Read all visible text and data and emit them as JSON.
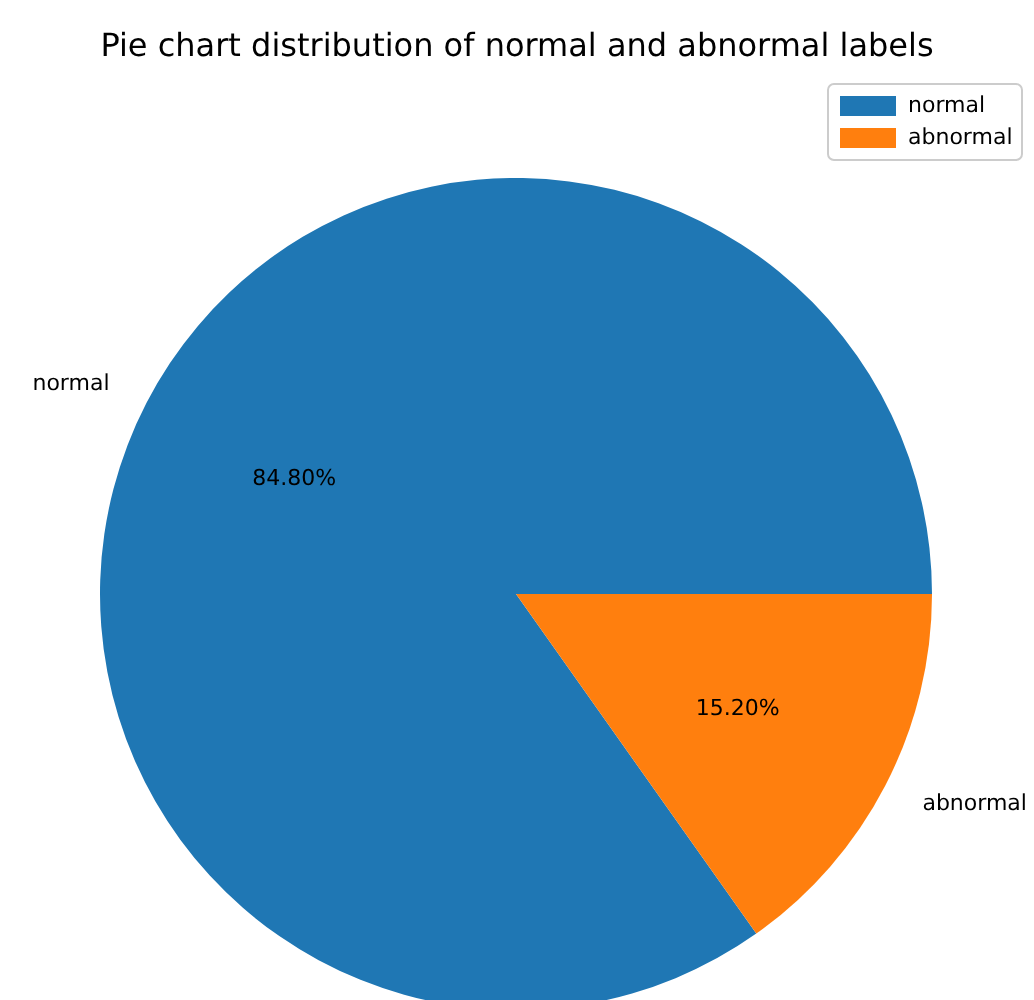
{
  "chart_data": {
    "type": "pie",
    "title": "Pie chart distribution of normal and abnormal labels",
    "categories": [
      "normal",
      "abnormal"
    ],
    "values": [
      84.8,
      15.2
    ],
    "colors": [
      "#1f77b4",
      "#ff7f0e"
    ],
    "value_labels": [
      "84.80%",
      "15.20%"
    ],
    "legend": "top right"
  }
}
